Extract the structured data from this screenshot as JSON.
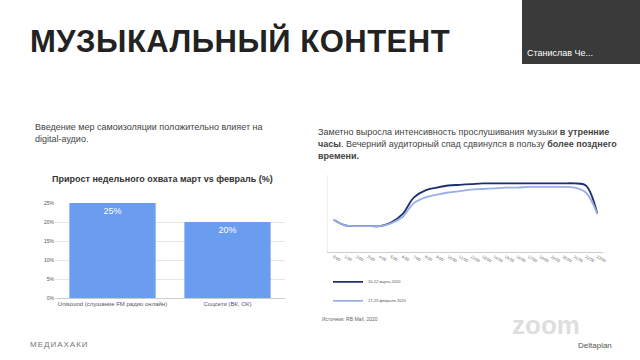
{
  "slide": {
    "title": "МУЗЫКАЛЬНЫЙ КОНТЕНТ",
    "speaker": "Станислав Че...",
    "footer_left": "МЕДИАХАКИ",
    "footer_right": "Deltaplan",
    "watermark": "zoom"
  },
  "chart_data": [
    {
      "type": "bar",
      "subtitle": [
        "Введение мер самоизоляции положительно влияет на digital-аудио."
      ],
      "title": "Прирост недельного охвата март vs февраль (%)",
      "categories": [
        "Unisound (слушание FM радио онлайн)",
        "Соцсети (ВК, ОК)"
      ],
      "values": [
        25,
        20
      ],
      "value_labels": [
        "25%",
        "20%"
      ],
      "data_labels": true,
      "color": "#6a9cf0",
      "ylim": [
        0,
        25
      ],
      "yticks": [
        {
          "value": 0,
          "label": "0%"
        },
        {
          "value": 5,
          "label": "5%"
        },
        {
          "value": 10,
          "label": "10%"
        },
        {
          "value": 15,
          "label": "15%"
        },
        {
          "value": 20,
          "label": "20%"
        },
        {
          "value": 25,
          "label": "25%"
        }
      ],
      "grid": true
    },
    {
      "type": "line",
      "subtitle": [
        "Заметно выросла интенсивность прослушивания музыки ",
        "в утренние часы",
        ". Вечерний аудиторный спад сдвинулся в пользу ",
        "более позднего времени."
      ],
      "source": "Источник: RB Mail, 2020",
      "categories": [
        "0:00",
        "1:00",
        "2:00",
        "3:00",
        "4:00",
        "5:00",
        "6:00",
        "7:00",
        "8:00",
        "9:00",
        "10:00",
        "11:00",
        "12:00",
        "13:00",
        "14:00",
        "15:00",
        "16:00",
        "17:00",
        "18:00",
        "19:00",
        "20:00",
        "21:00",
        "22:00",
        "23:00"
      ],
      "series": [
        {
          "name": "16-22 марта 2020",
          "color": "#1f2f6e",
          "values": [
            46,
            38,
            37,
            37,
            37,
            42,
            54,
            78,
            88,
            92,
            95,
            96,
            97,
            98,
            98,
            98,
            98,
            98,
            98,
            98,
            98,
            98,
            95,
            55
          ]
        },
        {
          "name": "17-23 февраля 2020",
          "color": "#9aaee8",
          "values": [
            46,
            38,
            37,
            37,
            37,
            41,
            50,
            70,
            78,
            82,
            85,
            87,
            89,
            90,
            91,
            92,
            92,
            93,
            93,
            93,
            93,
            92,
            85,
            55
          ]
        }
      ],
      "ylim": [
        0,
        110
      ],
      "tick_labels": "x",
      "grid": false,
      "legend": "bottom-left"
    }
  ]
}
